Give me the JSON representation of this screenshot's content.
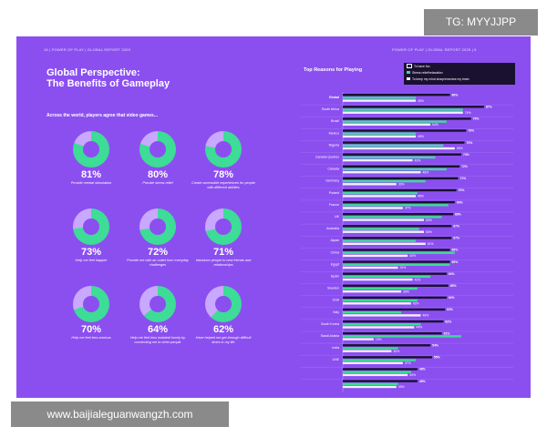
{
  "watermark_top": "TG: MYYJJPP",
  "watermark_bottom": "www.baijialeguanwangzh.com",
  "header_left": "15   |   POWER OF PLAY   |   GLOBAL REPORT 2025",
  "header_right": "POWER OF PLAY   |   GLOBAL REPORT 2025   |   5",
  "title_line1": "Global Perspective:",
  "title_line2": "The Benefits of Gameplay",
  "subtitle": "Across the world, players agree that video games...",
  "stats": [
    {
      "pct": "81%",
      "desc": "Provide mental stimulation",
      "value": 0.81
    },
    {
      "pct": "80%",
      "desc": "Provide stress relief",
      "value": 0.8
    },
    {
      "pct": "78%",
      "desc": "Create accessible experiences for people with different abilities",
      "value": 0.78
    },
    {
      "pct": "73%",
      "desc": "Help me feel happier",
      "value": 0.73
    },
    {
      "pct": "72%",
      "desc": "Provide me with an outlet from everyday challenges",
      "value": 0.72
    },
    {
      "pct": "71%",
      "desc": "Introduce people to new friends and relationships",
      "value": 0.71
    },
    {
      "pct": "70%",
      "desc": "Help me feel less anxious",
      "value": 0.7
    },
    {
      "pct": "64%",
      "desc": "Help me feel less isolated/ lonely by connecting me to other people",
      "value": 0.64
    },
    {
      "pct": "62%",
      "desc": "Have helped me get through difficult times in my life",
      "value": 0.62
    }
  ],
  "colors": {
    "page_bg": "#8b4ff0",
    "donut_fill": "#3ddc97",
    "donut_rest": "#c9a8ff",
    "fun": "#1a1030",
    "relax": "#3ddc97",
    "brain": "#f3f0ff"
  },
  "chart_data": {
    "type": "bar",
    "title": "Top Reasons for Playing",
    "series": [
      {
        "name": "To have fun",
        "values": [
          66,
          87,
          79,
          76,
          75,
          73,
          72,
          71,
          70,
          69,
          68,
          67,
          67,
          66,
          66,
          64,
          65,
          64,
          63,
          62,
          61,
          54,
          55,
          46,
          46
        ]
      },
      {
        "name": "Stress relief/relaxation",
        "values": [
          45,
          74,
          64,
          45,
          62,
          57,
          64,
          51,
          46,
          65,
          61,
          47,
          45,
          69,
          66,
          54,
          46,
          46,
          36,
          48,
          73,
          34,
          45,
          42,
          34
        ]
      },
      {
        "name": "To keep my mind sharp/exercise my brain",
        "values": [
          45,
          74,
          54,
          45,
          69,
          43,
          48,
          33,
          45,
          37,
          50,
          50,
          51,
          40,
          34,
          43,
          36,
          42,
          48,
          44,
          19,
          30,
          37,
          40,
          33
        ]
      }
    ],
    "categories": [
      "Global",
      "South Africa",
      "Brazil",
      "Mexico",
      "Nigeria",
      "Canada Quebec",
      "Canada",
      "Germany",
      "Poland",
      "France",
      "UK",
      "Australia",
      "Japan",
      "China",
      "Egypt",
      "Spain",
      "Sweden",
      "USA",
      "Italy",
      "South Korea",
      "Saudi Arabia",
      "India",
      "UAE",
      "",
      ""
    ],
    "labels_fun": [
      "66%",
      "87%",
      "79%",
      "76%",
      "75%",
      "73%",
      "72%",
      "71%",
      "70%",
      "69%",
      "68%",
      "67%",
      "67%",
      "66%",
      "66%",
      "64%",
      "65%",
      "64%",
      "63%",
      "62%",
      "61%",
      "54%",
      "55%",
      "46%",
      "46%"
    ],
    "labels_brain": [
      "45%",
      "74%",
      "54%",
      "45%",
      "69%",
      "43%",
      "48%",
      "33%",
      "45%",
      "37%",
      "50%",
      "50%",
      "51%",
      "40%",
      "34%",
      "43%",
      "36%",
      "42%",
      "48%",
      "44%",
      "19%",
      "30%",
      "37%",
      "40%",
      "33%"
    ],
    "xlim": [
      0,
      100
    ]
  }
}
